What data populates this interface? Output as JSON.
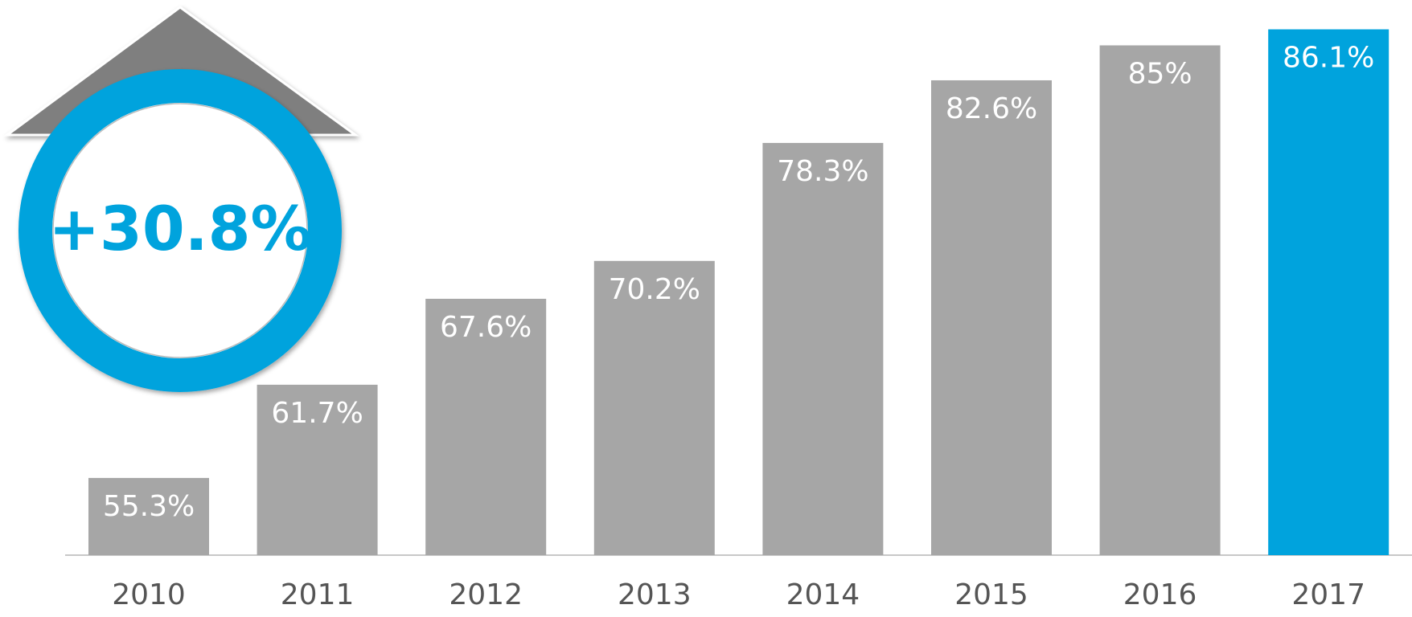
{
  "chart_data": {
    "type": "bar",
    "annotation": "+30.8%",
    "categories": [
      "2010",
      "2011",
      "2012",
      "2013",
      "2014",
      "2015",
      "2016",
      "2017"
    ],
    "values": [
      55.3,
      61.7,
      67.6,
      70.2,
      78.3,
      82.6,
      85,
      86.1
    ],
    "value_labels": [
      "55.3%",
      "61.7%",
      "67.6%",
      "70.2%",
      "78.3%",
      "82.6%",
      "85%",
      "86.1%"
    ],
    "colors": [
      "#a6a6a6",
      "#a6a6a6",
      "#a6a6a6",
      "#a6a6a6",
      "#a6a6a6",
      "#a6a6a6",
      "#a6a6a6",
      "#00a3dd"
    ],
    "ylim": [
      50,
      87
    ]
  }
}
